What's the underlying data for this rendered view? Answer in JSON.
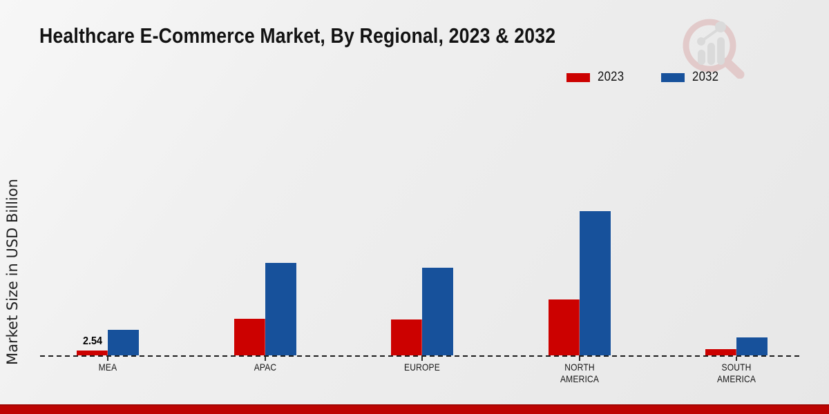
{
  "page": {
    "title": "Healthcare E-Commerce Market, By Regional, 2023 & 2032",
    "ylabel": "Market Size in USD Billion",
    "footer_bar_color": "#bd0402",
    "background": [
      "#f7f7f7",
      "#e7e7e7"
    ]
  },
  "legend": {
    "items": [
      {
        "label": "2023",
        "color": "#cc0100"
      },
      {
        "label": "2032",
        "color": "#17519b"
      }
    ]
  },
  "watermark": {
    "icon": "magnifier-bar-chart-logo",
    "ring_color": "#d9a3a3",
    "bar_color": "#c6c6c6"
  },
  "chart_data": {
    "type": "bar",
    "title": "Healthcare E-Commerce Market, By Regional, 2023 & 2032",
    "xlabel": "",
    "ylabel": "Market Size in USD Billion",
    "categories": [
      "MEA",
      "APAC",
      "EUROPE",
      "NORTH AMERICA",
      "SOUTH AMERICA"
    ],
    "series": [
      {
        "name": "2023",
        "color": "#cc0100",
        "values": [
          2.54,
          20.4,
          20.0,
          31.2,
          3.5
        ]
      },
      {
        "name": "2032",
        "color": "#17519b",
        "values": [
          14.2,
          51.5,
          48.8,
          80.4,
          10.0
        ]
      }
    ],
    "data_labels": [
      {
        "series": "2023",
        "category": "MEA",
        "text": "2.54"
      }
    ],
    "ylim": [
      0,
      85
    ],
    "y_axis_visible": false,
    "baseline_style": "dashed",
    "grid": false,
    "legend_position": "top-right"
  }
}
